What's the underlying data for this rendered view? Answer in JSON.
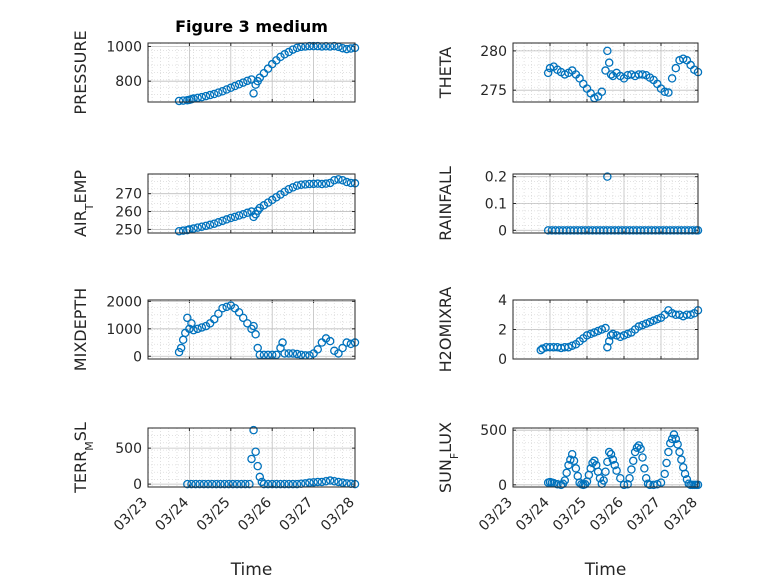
{
  "colors": {
    "marker": "#0072BD",
    "axis": "#262626",
    "grid": "#d9d9d9"
  },
  "chart_data": [
    {
      "id": "pressure",
      "type": "scatter",
      "title": "Figure 3 medium",
      "ylabel": "PRESSURE",
      "ylabel_sub": "",
      "xlim": [
        0,
        5
      ],
      "ylim": [
        680,
        1020
      ],
      "yticks": [
        800,
        1000
      ],
      "xticks_labels": [],
      "x": [
        0.75,
        0.85,
        0.95,
        1.0,
        1.05,
        1.1,
        1.2,
        1.3,
        1.4,
        1.5,
        1.6,
        1.7,
        1.8,
        1.9,
        2.0,
        2.1,
        2.2,
        2.3,
        2.4,
        2.5,
        2.55,
        2.6,
        2.65,
        2.7,
        2.8,
        2.9,
        3.0,
        3.1,
        3.2,
        3.3,
        3.4,
        3.5,
        3.6,
        3.7,
        3.8,
        3.9,
        4.0,
        4.1,
        4.2,
        4.3,
        4.4,
        4.5,
        4.6,
        4.7,
        4.8,
        4.9,
        5.0
      ],
      "y": [
        686,
        688,
        690,
        692,
        696,
        700,
        704,
        708,
        714,
        720,
        726,
        734,
        742,
        752,
        762,
        772,
        782,
        792,
        802,
        810,
        730,
        780,
        800,
        820,
        846,
        872,
        898,
        920,
        940,
        955,
        968,
        982,
        992,
        998,
        1000,
        1002,
        1002,
        1002,
        1000,
        1001,
        1000,
        1002,
        998,
        990,
        985,
        988,
        992
      ]
    },
    {
      "id": "theta",
      "type": "scatter",
      "ylabel": "THETA",
      "ylabel_sub": "",
      "xlim": [
        0,
        5
      ],
      "ylim": [
        273.5,
        281
      ],
      "yticks": [
        275,
        280
      ],
      "xticks_labels": [],
      "x": [
        0.95,
        1.0,
        1.1,
        1.2,
        1.3,
        1.4,
        1.5,
        1.6,
        1.7,
        1.8,
        1.9,
        2.0,
        2.1,
        2.2,
        2.3,
        2.4,
        2.5,
        2.55,
        2.6,
        2.65,
        2.7,
        2.8,
        2.9,
        3.0,
        3.1,
        3.2,
        3.3,
        3.4,
        3.5,
        3.6,
        3.7,
        3.8,
        3.9,
        4.0,
        4.1,
        4.2,
        4.3,
        4.4,
        4.5,
        4.6,
        4.7,
        4.8,
        4.9,
        5.0
      ],
      "y": [
        277.2,
        277.8,
        278.0,
        277.6,
        277.3,
        277.0,
        277.2,
        277.5,
        277.0,
        276.5,
        275.8,
        275.2,
        274.6,
        274.0,
        274.2,
        274.8,
        277.5,
        280.0,
        278.5,
        277.0,
        276.8,
        277.2,
        276.8,
        276.5,
        276.9,
        277.0,
        276.8,
        277.0,
        277.0,
        276.9,
        276.6,
        276.3,
        275.8,
        275.2,
        274.8,
        274.7,
        276.5,
        277.8,
        278.8,
        279.0,
        278.8,
        278.2,
        277.6,
        277.3
      ]
    },
    {
      "id": "air_temp",
      "type": "scatter",
      "ylabel": "AIR",
      "ylabel_sub": "T",
      "ylabel_tail": "EMP",
      "xlim": [
        0,
        5
      ],
      "ylim": [
        248,
        281
      ],
      "yticks": [
        250,
        260,
        270
      ],
      "xticks_labels": [],
      "x": [
        0.75,
        0.85,
        0.95,
        1.0,
        1.1,
        1.2,
        1.3,
        1.4,
        1.5,
        1.6,
        1.7,
        1.8,
        1.9,
        2.0,
        2.1,
        2.2,
        2.3,
        2.4,
        2.5,
        2.55,
        2.6,
        2.65,
        2.7,
        2.8,
        2.9,
        3.0,
        3.1,
        3.2,
        3.3,
        3.4,
        3.5,
        3.6,
        3.7,
        3.8,
        3.9,
        4.0,
        4.1,
        4.2,
        4.3,
        4.4,
        4.5,
        4.6,
        4.7,
        4.8,
        4.9,
        5.0
      ],
      "y": [
        249,
        249.3,
        249.6,
        250,
        250.5,
        251,
        251.5,
        252,
        252.6,
        253.2,
        254,
        254.8,
        255.6,
        256.4,
        257,
        257.8,
        258.5,
        259.3,
        260,
        257,
        258.5,
        260.5,
        262,
        263.5,
        265,
        266.5,
        268,
        269.5,
        271,
        272.5,
        273.5,
        274.5,
        275,
        275.2,
        275.4,
        275.5,
        275.6,
        275.4,
        275.6,
        276,
        277.5,
        278,
        277.5,
        276.5,
        276,
        275.8
      ]
    },
    {
      "id": "rainfall",
      "type": "scatter",
      "ylabel": "RAINFALL",
      "ylabel_sub": "",
      "xlim": [
        0,
        5
      ],
      "ylim": [
        -0.01,
        0.21
      ],
      "yticks": [
        0,
        0.1,
        0.2
      ],
      "xticks_labels": [],
      "x": [
        0.95,
        1.05,
        1.15,
        1.25,
        1.35,
        1.45,
        1.55,
        1.65,
        1.75,
        1.85,
        1.95,
        2.05,
        2.15,
        2.25,
        2.35,
        2.45,
        2.55,
        2.65,
        2.75,
        2.85,
        2.95,
        3.05,
        3.15,
        3.25,
        3.35,
        3.45,
        3.55,
        3.65,
        3.75,
        3.85,
        3.95,
        4.05,
        4.15,
        4.25,
        4.35,
        4.45,
        4.55,
        4.65,
        4.75,
        4.85,
        4.95,
        5.0,
        2.55
      ],
      "y": [
        0,
        0,
        0,
        0,
        0,
        0,
        0,
        0,
        0,
        0,
        0,
        0,
        0,
        0,
        0,
        0,
        0,
        0,
        0,
        0,
        0,
        0,
        0,
        0,
        0,
        0,
        0,
        0,
        0,
        0,
        0,
        0,
        0,
        0,
        0,
        0,
        0,
        0,
        0,
        0,
        0,
        0,
        0.2
      ]
    },
    {
      "id": "mixdepth",
      "type": "scatter",
      "ylabel": "MIXDEPTH",
      "ylabel_sub": "",
      "xlim": [
        0,
        5
      ],
      "ylim": [
        -100,
        2050
      ],
      "yticks": [
        0,
        1000,
        2000
      ],
      "xticks_labels": [],
      "x": [
        0.75,
        0.8,
        0.85,
        0.9,
        0.95,
        1.0,
        1.05,
        1.1,
        1.2,
        1.3,
        1.4,
        1.5,
        1.6,
        1.7,
        1.8,
        1.9,
        2.0,
        2.1,
        2.2,
        2.3,
        2.4,
        2.5,
        2.55,
        2.6,
        2.65,
        2.7,
        2.8,
        2.9,
        3.0,
        3.1,
        3.2,
        3.25,
        3.3,
        3.4,
        3.5,
        3.6,
        3.7,
        3.8,
        3.9,
        4.0,
        4.1,
        4.2,
        4.3,
        4.4,
        4.5,
        4.6,
        4.7,
        4.8,
        4.9,
        5.0
      ],
      "y": [
        150,
        300,
        600,
        850,
        1400,
        1000,
        1200,
        950,
        1000,
        1050,
        1100,
        1200,
        1350,
        1550,
        1750,
        1800,
        1850,
        1750,
        1600,
        1400,
        1200,
        1000,
        1100,
        800,
        300,
        50,
        50,
        50,
        50,
        50,
        300,
        500,
        100,
        100,
        100,
        80,
        50,
        30,
        30,
        100,
        250,
        500,
        650,
        550,
        200,
        100,
        300,
        500,
        450,
        500
      ]
    },
    {
      "id": "h2omixra",
      "type": "scatter",
      "ylabel": "H2OMIXRA",
      "ylabel_sub": "",
      "xlim": [
        0,
        5
      ],
      "ylim": [
        0,
        4
      ],
      "yticks": [
        0,
        2,
        4
      ],
      "xticks_labels": [],
      "x": [
        0.75,
        0.8,
        0.9,
        1.0,
        1.1,
        1.2,
        1.3,
        1.4,
        1.5,
        1.6,
        1.7,
        1.8,
        1.9,
        2.0,
        2.1,
        2.2,
        2.3,
        2.4,
        2.5,
        2.55,
        2.6,
        2.65,
        2.7,
        2.8,
        2.9,
        3.0,
        3.1,
        3.2,
        3.3,
        3.4,
        3.5,
        3.6,
        3.7,
        3.8,
        3.9,
        4.0,
        4.1,
        4.2,
        4.3,
        4.4,
        4.5,
        4.6,
        4.7,
        4.8,
        4.9,
        5.0
      ],
      "y": [
        0.6,
        0.7,
        0.8,
        0.8,
        0.8,
        0.8,
        0.75,
        0.8,
        0.8,
        0.9,
        1.0,
        1.2,
        1.4,
        1.6,
        1.7,
        1.8,
        1.9,
        2.0,
        2.1,
        0.8,
        1.2,
        1.6,
        1.7,
        1.6,
        1.5,
        1.6,
        1.7,
        1.8,
        2.0,
        2.2,
        2.3,
        2.4,
        2.5,
        2.6,
        2.7,
        2.8,
        3.0,
        3.3,
        3.1,
        3.0,
        3.0,
        2.9,
        3.0,
        3.0,
        3.1,
        3.3
      ]
    },
    {
      "id": "terr_msl",
      "type": "scatter",
      "ylabel": "TERR",
      "ylabel_sub": "M",
      "ylabel_tail": "SL",
      "xlim": [
        0,
        5
      ],
      "ylim": [
        -40,
        780
      ],
      "yticks": [
        0,
        500
      ],
      "xticks_labels": [
        "03/23",
        "03/24",
        "03/25",
        "03/26",
        "03/27",
        "03/28"
      ],
      "xlabel": "Time",
      "x": [
        0.95,
        1.05,
        1.15,
        1.25,
        1.35,
        1.45,
        1.55,
        1.65,
        1.75,
        1.85,
        1.95,
        2.05,
        2.15,
        2.25,
        2.35,
        2.45,
        2.5,
        2.55,
        2.6,
        2.65,
        2.7,
        2.75,
        2.8,
        2.9,
        3.0,
        3.1,
        3.2,
        3.3,
        3.4,
        3.5,
        3.6,
        3.7,
        3.8,
        3.9,
        4.0,
        4.1,
        4.2,
        4.3,
        4.4,
        4.5,
        4.6,
        4.7,
        4.8,
        4.9,
        5.0
      ],
      "y": [
        0,
        0,
        0,
        0,
        0,
        0,
        0,
        0,
        0,
        0,
        0,
        0,
        0,
        0,
        0,
        0,
        350,
        750,
        450,
        250,
        100,
        30,
        0,
        0,
        0,
        0,
        0,
        0,
        0,
        0,
        0,
        5,
        10,
        20,
        25,
        30,
        30,
        40,
        50,
        40,
        30,
        20,
        10,
        5,
        0
      ]
    },
    {
      "id": "sun_flux",
      "type": "scatter",
      "ylabel": "SUN",
      "ylabel_sub": "F",
      "ylabel_tail": "LUX",
      "xlim": [
        0,
        5
      ],
      "ylim": [
        -20,
        520
      ],
      "yticks": [
        0,
        500
      ],
      "xticks_labels": [
        "03/23",
        "03/24",
        "03/25",
        "03/26",
        "03/27",
        "03/28"
      ],
      "xlabel": "Time",
      "x": [
        0.95,
        1.0,
        1.05,
        1.1,
        1.2,
        1.3,
        1.35,
        1.4,
        1.45,
        1.5,
        1.55,
        1.6,
        1.65,
        1.7,
        1.75,
        1.8,
        1.85,
        1.9,
        1.95,
        2.0,
        2.05,
        2.1,
        2.15,
        2.2,
        2.25,
        2.3,
        2.35,
        2.4,
        2.45,
        2.5,
        2.55,
        2.6,
        2.65,
        2.7,
        2.75,
        2.8,
        2.9,
        3.0,
        3.1,
        3.15,
        3.2,
        3.25,
        3.3,
        3.35,
        3.4,
        3.45,
        3.5,
        3.55,
        3.6,
        3.65,
        3.7,
        3.8,
        3.9,
        4.0,
        4.1,
        4.15,
        4.2,
        4.25,
        4.3,
        4.35,
        4.4,
        4.45,
        4.5,
        4.55,
        4.6,
        4.65,
        4.7,
        4.75,
        4.8,
        4.85,
        4.9,
        4.95,
        5.0
      ],
      "y": [
        20,
        25,
        20,
        15,
        5,
        0,
        10,
        40,
        110,
        180,
        230,
        280,
        220,
        150,
        80,
        20,
        5,
        0,
        5,
        30,
        90,
        150,
        200,
        220,
        180,
        120,
        60,
        10,
        40,
        120,
        210,
        300,
        280,
        230,
        180,
        130,
        60,
        0,
        5,
        60,
        140,
        220,
        300,
        340,
        360,
        330,
        250,
        150,
        60,
        10,
        0,
        0,
        5,
        20,
        100,
        200,
        300,
        380,
        420,
        460,
        420,
        370,
        300,
        230,
        160,
        100,
        50,
        10,
        0,
        0,
        0,
        0,
        0
      ]
    }
  ]
}
